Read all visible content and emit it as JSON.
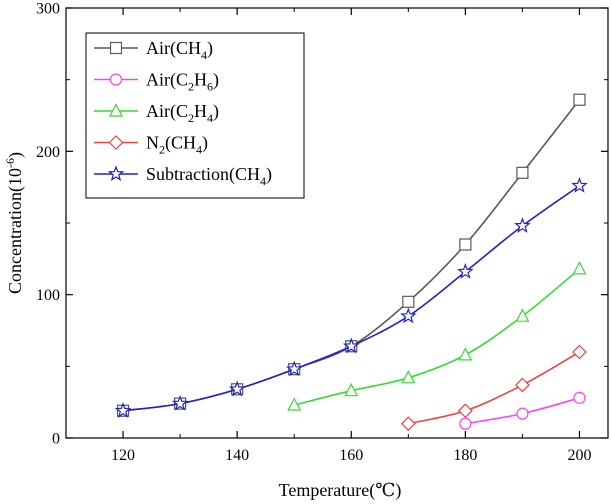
{
  "chart_data": {
    "type": "line",
    "xlabel": "Temperature(℃)",
    "ylabel_base": "Concentration(10",
    "ylabel_sup": "-6",
    "ylabel_end": ")",
    "xlim": [
      110,
      205
    ],
    "ylim": [
      0,
      300
    ],
    "xticks": [
      120,
      140,
      160,
      180,
      200
    ],
    "xticks_minor": [
      130,
      150,
      170,
      190
    ],
    "yticks": [
      0,
      100,
      200,
      300
    ],
    "yticks_minor": [
      50,
      150,
      250
    ],
    "legend_position": "top-left",
    "series": [
      {
        "name": "Air(CH4)",
        "label_parts": [
          [
            "Air(CH",
            "n"
          ],
          [
            "4",
            "sub"
          ],
          [
            ")",
            "n"
          ]
        ],
        "color": "#595959",
        "marker": "square",
        "x": [
          120,
          130,
          140,
          150,
          160,
          170,
          180,
          190,
          200
        ],
        "y": [
          19,
          24,
          34,
          48,
          64,
          95,
          135,
          185,
          236
        ]
      },
      {
        "name": "Air(C2H6)",
        "label_parts": [
          [
            "Air(C",
            "n"
          ],
          [
            "2",
            "sub"
          ],
          [
            "H",
            "n"
          ],
          [
            "6",
            "sub"
          ],
          [
            ")",
            "n"
          ]
        ],
        "color": "#ff40ff",
        "marker": "circle",
        "x": [
          180,
          190,
          200
        ],
        "y": [
          10,
          17,
          28
        ]
      },
      {
        "name": "Air(C2H4)",
        "label_parts": [
          [
            "Air(C",
            "n"
          ],
          [
            "2",
            "sub"
          ],
          [
            "H",
            "n"
          ],
          [
            "4",
            "sub"
          ],
          [
            ")",
            "n"
          ]
        ],
        "color": "#33dd33",
        "marker": "triangle",
        "x": [
          150,
          160,
          170,
          180,
          190,
          200
        ],
        "y": [
          23,
          33,
          42,
          58,
          85,
          118
        ]
      },
      {
        "name": "N2(CH4)",
        "label_parts": [
          [
            "N",
            "n"
          ],
          [
            "2",
            "sub"
          ],
          [
            "(CH",
            "n"
          ],
          [
            "4",
            "sub"
          ],
          [
            ")",
            "n"
          ]
        ],
        "color": "#f04040",
        "marker": "diamond",
        "x": [
          170,
          180,
          190,
          200
        ],
        "y": [
          10,
          19,
          37,
          60
        ]
      },
      {
        "name": "Subtraction(CH4)",
        "label_parts": [
          [
            "Subtraction(CH",
            "n"
          ],
          [
            "4",
            "sub"
          ],
          [
            ")",
            "n"
          ]
        ],
        "color": "#2222cc",
        "marker": "star",
        "x": [
          120,
          130,
          140,
          150,
          160,
          170,
          180,
          190,
          200
        ],
        "y": [
          19,
          24,
          34,
          48,
          64,
          85,
          116,
          148,
          176
        ]
      }
    ]
  }
}
